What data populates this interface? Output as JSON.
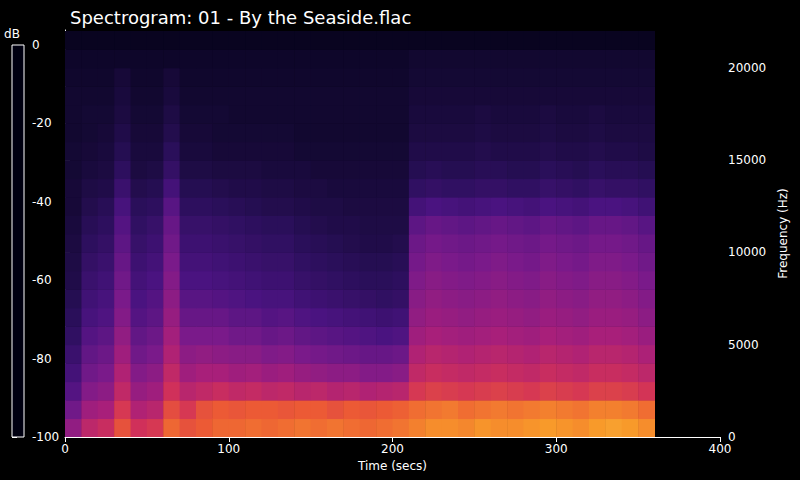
{
  "chart_data": {
    "type": "heatmap",
    "title": "Spectrogram: 01 - By the Seaside.flac",
    "x_label": "Time (secs)",
    "y_label": "Frequency (Hz)",
    "xlim": [
      0,
      400
    ],
    "xticks": [
      0,
      100,
      200,
      300,
      400
    ],
    "ylim": [
      0,
      22050
    ],
    "yticks": [
      0,
      5000,
      10000,
      15000,
      20000
    ],
    "time_bins": [
      0,
      10,
      20,
      30,
      40,
      50,
      60,
      70,
      80,
      90,
      100,
      110,
      120,
      130,
      140,
      150,
      160,
      170,
      180,
      190,
      200,
      210,
      220,
      230,
      240,
      250,
      260,
      270,
      280,
      290,
      300,
      310,
      320,
      330,
      340,
      350,
      360
    ],
    "freq_bins": [
      0,
      1000,
      2000,
      3000,
      4000,
      5000,
      6000,
      7000,
      8000,
      9000,
      10000,
      11000,
      12000,
      13000,
      14000,
      15000,
      16000,
      17000,
      18000,
      19000,
      20000,
      21000,
      22000
    ],
    "cells": [
      [
        -55,
        -45,
        -42,
        -32,
        -40,
        -38,
        -28,
        -32,
        -30,
        -28,
        -28,
        -27,
        -28,
        -27,
        -26,
        -27,
        -26,
        -27,
        -28,
        -27,
        -26,
        -24,
        -22,
        -22,
        -23,
        -21,
        -22,
        -22,
        -21,
        -20,
        -21,
        -22,
        -20,
        -19,
        -20,
        -22
      ],
      [
        -62,
        -52,
        -50,
        -38,
        -48,
        -46,
        -33,
        -38,
        -32,
        -30,
        -31,
        -30,
        -30,
        -31,
        -30,
        -30,
        -32,
        -30,
        -31,
        -30,
        -29,
        -27,
        -26,
        -25,
        -27,
        -26,
        -25,
        -26,
        -25,
        -24,
        -25,
        -26,
        -24,
        -24,
        -25,
        -27
      ],
      [
        -68,
        -58,
        -56,
        -44,
        -54,
        -52,
        -40,
        -46,
        -44,
        -42,
        -44,
        -43,
        -45,
        -44,
        -46,
        -45,
        -47,
        -46,
        -48,
        -47,
        -46,
        -38,
        -36,
        -37,
        -38,
        -37,
        -36,
        -37,
        -38,
        -36,
        -37,
        -38,
        -36,
        -36,
        -37,
        -39
      ],
      [
        -72,
        -62,
        -60,
        -48,
        -58,
        -56,
        -44,
        -52,
        -50,
        -50,
        -52,
        -51,
        -53,
        -52,
        -54,
        -55,
        -56,
        -56,
        -58,
        -58,
        -57,
        -44,
        -42,
        -43,
        -44,
        -43,
        -42,
        -43,
        -44,
        -42,
        -43,
        -44,
        -42,
        -42,
        -43,
        -45
      ],
      [
        -75,
        -65,
        -63,
        -52,
        -62,
        -60,
        -48,
        -56,
        -55,
        -56,
        -57,
        -57,
        -59,
        -58,
        -60,
        -61,
        -62,
        -63,
        -64,
        -64,
        -63,
        -48,
        -46,
        -47,
        -48,
        -47,
        -46,
        -47,
        -48,
        -46,
        -47,
        -48,
        -46,
        -46,
        -47,
        -49
      ],
      [
        -78,
        -68,
        -66,
        -55,
        -65,
        -63,
        -51,
        -60,
        -60,
        -60,
        -62,
        -62,
        -64,
        -63,
        -65,
        -66,
        -67,
        -68,
        -69,
        -70,
        -69,
        -52,
        -50,
        -51,
        -52,
        -51,
        -50,
        -51,
        -52,
        -50,
        -51,
        -52,
        -50,
        -50,
        -51,
        -53
      ],
      [
        -80,
        -71,
        -69,
        -58,
        -68,
        -66,
        -54,
        -64,
        -64,
        -64,
        -66,
        -66,
        -68,
        -67,
        -69,
        -70,
        -71,
        -72,
        -73,
        -74,
        -73,
        -55,
        -53,
        -54,
        -55,
        -54,
        -53,
        -54,
        -55,
        -53,
        -54,
        -55,
        -53,
        -53,
        -54,
        -56
      ],
      [
        -82,
        -73,
        -71,
        -60,
        -70,
        -68,
        -56,
        -67,
        -67,
        -68,
        -69,
        -70,
        -71,
        -71,
        -73,
        -74,
        -75,
        -76,
        -77,
        -78,
        -77,
        -57,
        -55,
        -56,
        -57,
        -56,
        -55,
        -56,
        -57,
        -55,
        -56,
        -57,
        -55,
        -55,
        -56,
        -58
      ],
      [
        -84,
        -75,
        -73,
        -62,
        -72,
        -70,
        -58,
        -70,
        -70,
        -71,
        -72,
        -73,
        -74,
        -74,
        -76,
        -77,
        -78,
        -79,
        -80,
        -80,
        -79,
        -59,
        -57,
        -58,
        -59,
        -58,
        -57,
        -58,
        -59,
        -57,
        -58,
        -59,
        -57,
        -57,
        -58,
        -60
      ],
      [
        -85,
        -77,
        -75,
        -64,
        -74,
        -72,
        -60,
        -72,
        -72,
        -73,
        -74,
        -75,
        -76,
        -76,
        -78,
        -79,
        -80,
        -81,
        -82,
        -82,
        -81,
        -61,
        -59,
        -60,
        -61,
        -60,
        -59,
        -60,
        -61,
        -59,
        -60,
        -61,
        -59,
        -59,
        -60,
        -62
      ],
      [
        -86,
        -79,
        -77,
        -66,
        -76,
        -74,
        -62,
        -74,
        -74,
        -75,
        -76,
        -77,
        -78,
        -78,
        -80,
        -81,
        -82,
        -83,
        -84,
        -84,
        -83,
        -63,
        -61,
        -62,
        -63,
        -62,
        -61,
        -62,
        -63,
        -61,
        -62,
        -63,
        -61,
        -61,
        -62,
        -64
      ],
      [
        -87,
        -81,
        -79,
        -68,
        -78,
        -76,
        -64,
        -76,
        -76,
        -77,
        -78,
        -79,
        -80,
        -80,
        -82,
        -83,
        -84,
        -84,
        -85,
        -85,
        -85,
        -66,
        -64,
        -65,
        -66,
        -65,
        -64,
        -65,
        -66,
        -64,
        -65,
        -66,
        -64,
        -64,
        -65,
        -67
      ],
      [
        -88,
        -83,
        -81,
        -71,
        -80,
        -79,
        -67,
        -79,
        -79,
        -80,
        -81,
        -82,
        -83,
        -83,
        -84,
        -85,
        -85,
        -86,
        -86,
        -86,
        -86,
        -72,
        -70,
        -71,
        -72,
        -71,
        -70,
        -71,
        -72,
        -70,
        -71,
        -72,
        -70,
        -70,
        -71,
        -73
      ],
      [
        -88,
        -85,
        -84,
        -75,
        -83,
        -82,
        -72,
        -82,
        -82,
        -83,
        -84,
        -84,
        -85,
        -85,
        -86,
        -86,
        -87,
        -87,
        -87,
        -87,
        -87,
        -78,
        -77,
        -78,
        -78,
        -77,
        -77,
        -78,
        -78,
        -76,
        -77,
        -78,
        -76,
        -77,
        -77,
        -78
      ],
      [
        -89,
        -87,
        -86,
        -79,
        -86,
        -85,
        -77,
        -85,
        -85,
        -86,
        -86,
        -86,
        -87,
        -87,
        -87,
        -88,
        -88,
        -88,
        -88,
        -88,
        -88,
        -82,
        -81,
        -82,
        -82,
        -81,
        -81,
        -82,
        -82,
        -80,
        -81,
        -82,
        -80,
        -81,
        -81,
        -82
      ],
      [
        -89,
        -88,
        -87,
        -82,
        -87,
        -87,
        -80,
        -87,
        -87,
        -88,
        -88,
        -88,
        -88,
        -88,
        -89,
        -89,
        -89,
        -89,
        -89,
        -89,
        -89,
        -84,
        -84,
        -84,
        -84,
        -83,
        -84,
        -84,
        -84,
        -83,
        -84,
        -84,
        -83,
        -84,
        -84,
        -85
      ],
      [
        -90,
        -89,
        -88,
        -84,
        -88,
        -88,
        -83,
        -88,
        -88,
        -89,
        -89,
        -89,
        -89,
        -89,
        -90,
        -90,
        -90,
        -90,
        -90,
        -90,
        -90,
        -86,
        -86,
        -86,
        -86,
        -85,
        -86,
        -86,
        -86,
        -85,
        -86,
        -86,
        -85,
        -86,
        -86,
        -86
      ],
      [
        -90,
        -89,
        -89,
        -86,
        -89,
        -89,
        -85,
        -89,
        -89,
        -89,
        -90,
        -90,
        -90,
        -90,
        -90,
        -90,
        -90,
        -90,
        -90,
        -90,
        -90,
        -87,
        -87,
        -87,
        -87,
        -86,
        -87,
        -87,
        -87,
        -86,
        -87,
        -87,
        -86,
        -87,
        -87,
        -87
      ],
      [
        -90,
        -90,
        -90,
        -87,
        -90,
        -90,
        -87,
        -90,
        -90,
        -90,
        -90,
        -90,
        -90,
        -90,
        -90,
        -90,
        -90,
        -90,
        -90,
        -90,
        -90,
        -88,
        -88,
        -88,
        -88,
        -88,
        -88,
        -88,
        -88,
        -88,
        -88,
        -88,
        -88,
        -88,
        -88,
        -88
      ],
      [
        -91,
        -91,
        -91,
        -88,
        -91,
        -91,
        -88,
        -91,
        -91,
        -91,
        -91,
        -91,
        -91,
        -91,
        -91,
        -91,
        -91,
        -91,
        -91,
        -91,
        -91,
        -89,
        -89,
        -89,
        -89,
        -89,
        -89,
        -89,
        -89,
        -89,
        -89,
        -89,
        -89,
        -89,
        -89,
        -89
      ],
      [
        -92,
        -92,
        -92,
        -92,
        -92,
        -92,
        -92,
        -92,
        -92,
        -92,
        -92,
        -92,
        -92,
        -92,
        -92,
        -92,
        -92,
        -92,
        -92,
        -92,
        -92,
        -90,
        -90,
        -90,
        -90,
        -90,
        -90,
        -90,
        -90,
        -90,
        -90,
        -90,
        -90,
        -90,
        -90,
        -90
      ],
      [
        -95,
        -95,
        -95,
        -95,
        -95,
        -95,
        -95,
        -95,
        -95,
        -95,
        -95,
        -95,
        -95,
        -95,
        -95,
        -95,
        -95,
        -95,
        -95,
        -95,
        -95,
        -95,
        -95,
        -95,
        -95,
        -95,
        -95,
        -95,
        -95,
        -95,
        -95,
        -95,
        -95,
        -95,
        -95,
        -95
      ]
    ],
    "colorbar": {
      "label": "dB",
      "range": [
        -100,
        0
      ],
      "ticks": [
        0,
        -20,
        -40,
        -60,
        -80,
        -100
      ]
    }
  }
}
